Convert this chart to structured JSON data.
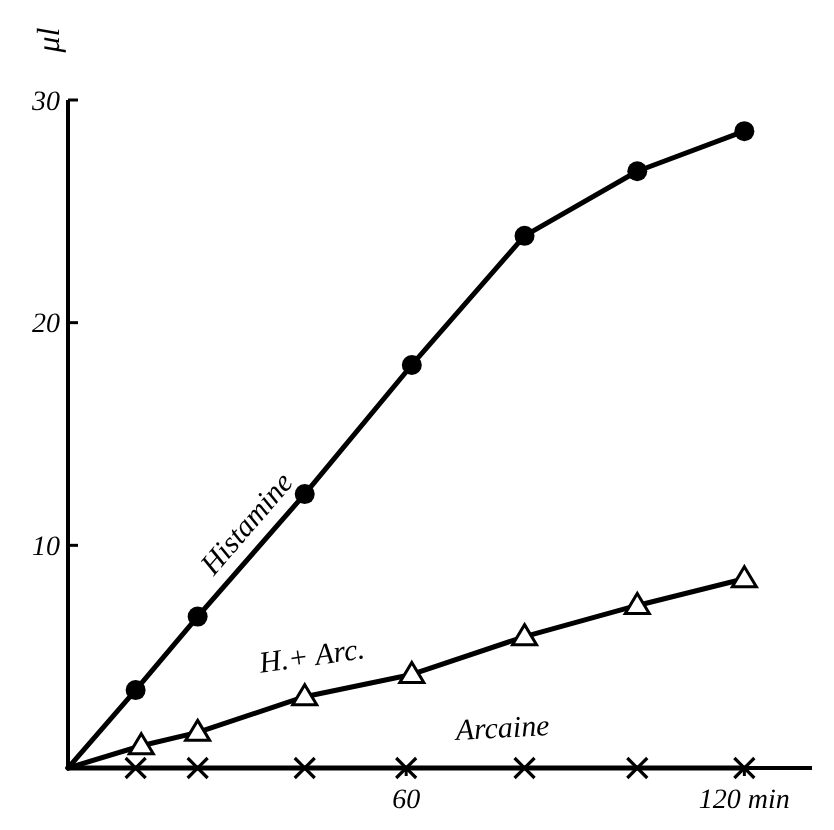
{
  "chart_data": {
    "type": "line",
    "ylabel": "μl",
    "xlim": [
      0,
      132
    ],
    "ylim": [
      0,
      30
    ],
    "xticks": [
      {
        "value": 60,
        "label": "60"
      },
      {
        "value": 120,
        "label": "120 min"
      }
    ],
    "yticks": [
      10,
      20,
      30
    ],
    "grid": false,
    "line_style": "solid",
    "series": [
      {
        "name": "Histamine",
        "color": "#000000",
        "marker": "circle",
        "x": [
          0,
          12,
          23,
          42,
          61,
          81,
          101,
          120
        ],
        "values": [
          0,
          3.5,
          6.8,
          12.3,
          18.1,
          23.9,
          26.8,
          28.6
        ]
      },
      {
        "name": "H.+ Arc.",
        "color": "#000000",
        "marker": "triangle",
        "x": [
          0,
          13,
          23,
          42,
          61,
          81,
          101,
          120
        ],
        "values": [
          0,
          1.0,
          1.6,
          3.2,
          4.2,
          5.9,
          7.3,
          8.5
        ]
      },
      {
        "name": "Arcaine",
        "color": "#000000",
        "marker": "cross",
        "x": [
          0,
          12,
          23,
          42,
          60,
          81,
          101,
          120
        ],
        "values": [
          0,
          0,
          0,
          0,
          0,
          0,
          0,
          0
        ]
      }
    ]
  }
}
